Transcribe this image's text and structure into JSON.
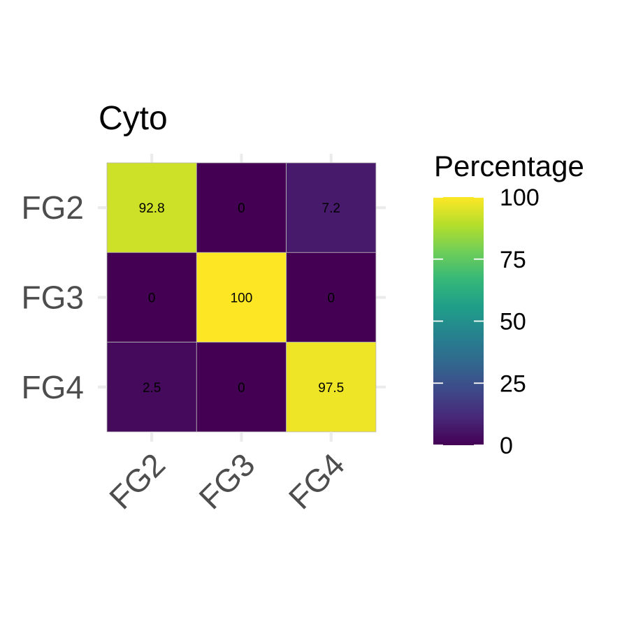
{
  "chart_data": {
    "type": "heatmap",
    "title": "Cyto",
    "x_categories": [
      "FG2",
      "FG3",
      "FG4"
    ],
    "y_categories": [
      "FG2",
      "FG3",
      "FG4"
    ],
    "cells": [
      {
        "x": "FG2",
        "y": "FG2",
        "value": 92.8,
        "label": "92.8"
      },
      {
        "x": "FG3",
        "y": "FG2",
        "value": 0,
        "label": "0"
      },
      {
        "x": "FG4",
        "y": "FG2",
        "value": 7.2,
        "label": "7.2"
      },
      {
        "x": "FG2",
        "y": "FG3",
        "value": 0,
        "label": "0"
      },
      {
        "x": "FG3",
        "y": "FG3",
        "value": 100,
        "label": "100"
      },
      {
        "x": "FG4",
        "y": "FG3",
        "value": 0,
        "label": "0"
      },
      {
        "x": "FG2",
        "y": "FG4",
        "value": 2.5,
        "label": "2.5"
      },
      {
        "x": "FG3",
        "y": "FG4",
        "value": 0,
        "label": "0"
      },
      {
        "x": "FG4",
        "y": "FG4",
        "value": 97.5,
        "label": "97.5"
      }
    ],
    "legend": {
      "title": "Percentage",
      "ticks": [
        0,
        25,
        50,
        75,
        100
      ],
      "tick_labels": [
        "0",
        "25",
        "50",
        "75",
        "100"
      ],
      "placement": "right",
      "colormap": "viridis"
    },
    "value_range": [
      0,
      100
    ],
    "grid": true,
    "colors": [
      "#440154",
      "#482878",
      "#3e4989",
      "#31688e",
      "#26828e",
      "#1f9e89",
      "#35b779",
      "#6ece58",
      "#b5de2b",
      "#fde725"
    ]
  }
}
